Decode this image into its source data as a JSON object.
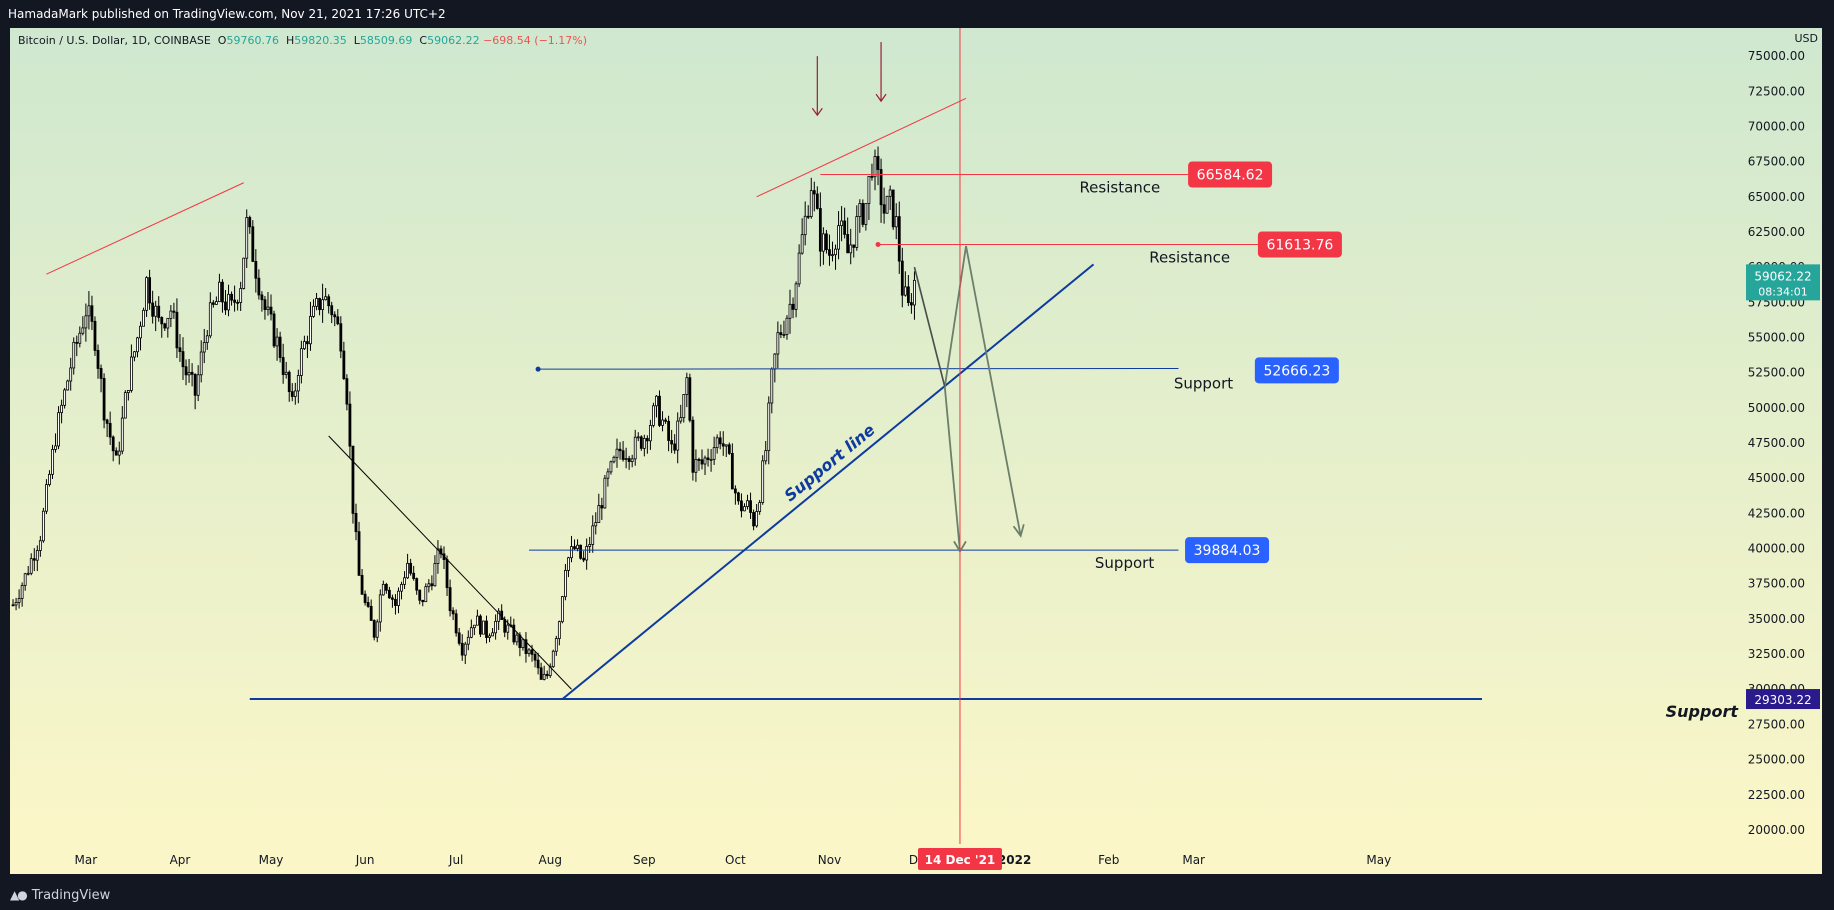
{
  "header": {
    "published": "HamadaMark published on TradingView.com, Nov 21, 2021 17:26 UTC+2"
  },
  "footer": {
    "brand": "TradingView",
    "logo_icon": "tradingview-logo-icon"
  },
  "chart_data": {
    "type": "candlestick",
    "symbol": "Bitcoin / U.S. Dollar, 1D, COINBASE",
    "ohlc_label": {
      "o_key": "O",
      "o": "59760.76",
      "h_key": "H",
      "h": "59820.35",
      "l_key": "L",
      "l": "58509.69",
      "c_key": "C",
      "c": "59062.22",
      "change": "−698.54 (−1.17%)"
    },
    "currency": "USD",
    "y_ticks": [
      "75000.00",
      "72500.00",
      "70000.00",
      "67500.00",
      "65000.00",
      "62500.00",
      "60000.00",
      "57500.00",
      "55000.00",
      "52500.00",
      "50000.00",
      "47500.00",
      "45000.00",
      "42500.00",
      "40000.00",
      "37500.00",
      "35000.00",
      "32500.00",
      "30000.00",
      "27500.00",
      "25000.00",
      "22500.00",
      "20000.00"
    ],
    "y_tick_values": [
      75000,
      72500,
      70000,
      67500,
      65000,
      62500,
      60000,
      57500,
      55000,
      52500,
      50000,
      47500,
      45000,
      42500,
      40000,
      37500,
      35000,
      32500,
      30000,
      27500,
      25000,
      22500,
      20000
    ],
    "ylim": [
      19000,
      77000
    ],
    "x_ticks": [
      "Mar",
      "Apr",
      "May",
      "Jun",
      "Jul",
      "Aug",
      "Sep",
      "Oct",
      "Nov",
      "Dec",
      "2022",
      "Feb",
      "Mar",
      "May"
    ],
    "x_tick_days": [
      60,
      91,
      121,
      152,
      182,
      213,
      244,
      274,
      305,
      335,
      366,
      397,
      425,
      486
    ],
    "xlim": [
      35,
      520
    ],
    "last_price": {
      "value": "59062.22",
      "countdown": "08:34:01",
      "price": 59062.22
    },
    "crosshair": {
      "date_label": "14 Dec '21",
      "day": 348
    },
    "price_path": [
      [
        36,
        36000
      ],
      [
        40,
        38000
      ],
      [
        45,
        41000
      ],
      [
        50,
        48000
      ],
      [
        55,
        53000
      ],
      [
        60,
        57000
      ],
      [
        63,
        55000
      ],
      [
        66,
        50000
      ],
      [
        70,
        46000
      ],
      [
        74,
        52000
      ],
      [
        77,
        55000
      ],
      [
        80,
        59000
      ],
      [
        84,
        56000
      ],
      [
        88,
        57000
      ],
      [
        92,
        53000
      ],
      [
        96,
        51000
      ],
      [
        100,
        56000
      ],
      [
        104,
        58000
      ],
      [
        108,
        57000
      ],
      [
        111,
        59000
      ],
      [
        113,
        63000
      ],
      [
        116,
        60000
      ],
      [
        119,
        57000
      ],
      [
        124,
        54000
      ],
      [
        128,
        50000
      ],
      [
        130,
        53000
      ],
      [
        134,
        56000
      ],
      [
        138,
        58000
      ],
      [
        141,
        57000
      ],
      [
        144,
        55000
      ],
      [
        146,
        51000
      ],
      [
        148,
        43000
      ],
      [
        150,
        38000
      ],
      [
        152,
        36000
      ],
      [
        155,
        34000
      ],
      [
        158,
        38000
      ],
      [
        162,
        36000
      ],
      [
        166,
        39000
      ],
      [
        170,
        36000
      ],
      [
        174,
        38000
      ],
      [
        177,
        40000
      ],
      [
        180,
        36000
      ],
      [
        184,
        33000
      ],
      [
        188,
        35000
      ],
      [
        192,
        34000
      ],
      [
        196,
        35000
      ],
      [
        200,
        34000
      ],
      [
        204,
        33000
      ],
      [
        208,
        32000
      ],
      [
        210,
        30500
      ],
      [
        212,
        31000
      ],
      [
        214,
        33000
      ],
      [
        216,
        35000
      ],
      [
        218,
        39000
      ],
      [
        221,
        40000
      ],
      [
        224,
        39000
      ],
      [
        228,
        42000
      ],
      [
        232,
        45000
      ],
      [
        236,
        47000
      ],
      [
        240,
        47000
      ],
      [
        244,
        48000
      ],
      [
        248,
        50000
      ],
      [
        250,
        49000
      ],
      [
        253,
        47000
      ],
      [
        256,
        49000
      ],
      [
        258,
        52000
      ],
      [
        260,
        46000
      ],
      [
        263,
        46000
      ],
      [
        266,
        47000
      ],
      [
        269,
        48000
      ],
      [
        272,
        46000
      ],
      [
        275,
        43000
      ],
      [
        278,
        43000
      ],
      [
        280,
        42000
      ],
      [
        282,
        44000
      ],
      [
        284,
        47000
      ],
      [
        286,
        52000
      ],
      [
        288,
        55000
      ],
      [
        290,
        56000
      ],
      [
        293,
        58000
      ],
      [
        296,
        62000
      ],
      [
        299,
        66000
      ],
      [
        302,
        62000
      ],
      [
        305,
        61000
      ],
      [
        308,
        63000
      ],
      [
        311,
        61000
      ],
      [
        314,
        63000
      ],
      [
        317,
        64500
      ],
      [
        319,
        67500
      ],
      [
        321,
        66000
      ],
      [
        323,
        64000
      ],
      [
        325,
        64500
      ],
      [
        327,
        63000
      ],
      [
        329,
        58500
      ],
      [
        331,
        57000
      ],
      [
        333,
        59062
      ]
    ],
    "drawings": [
      {
        "kind": "trend",
        "color": "#f23645",
        "from": [
          47,
          59500
        ],
        "to": [
          112,
          66000
        ]
      },
      {
        "kind": "trend",
        "color": "#f23645",
        "from": [
          281,
          65000
        ],
        "to": [
          350,
          72000
        ]
      },
      {
        "kind": "trend",
        "color": "#000000",
        "from": [
          140,
          48000
        ],
        "to": [
          220,
          30000
        ]
      },
      {
        "kind": "trend",
        "color": "#0d3b9e",
        "from": [
          217,
          29300
        ],
        "to": [
          392,
          60200
        ]
      },
      {
        "kind": "hline",
        "color": "#0d3b9e",
        "from": [
          114,
          29303
        ],
        "to": [
          520,
          29303
        ]
      },
      {
        "kind": "hline",
        "color": "#0d3b9e",
        "from": [
          209,
          52750
        ],
        "to": [
          420,
          52800
        ]
      },
      {
        "kind": "hline",
        "color": "#0d3b9e",
        "from": [
          206,
          39884
        ],
        "to": [
          420,
          39884
        ]
      },
      {
        "kind": "hline",
        "color": "#f23645",
        "from": [
          302,
          66584
        ],
        "to": [
          430,
          66584
        ]
      },
      {
        "kind": "hline",
        "color": "#f23645",
        "from": [
          321,
          61614
        ],
        "to": [
          454,
          61614
        ]
      }
    ],
    "arrows_down": [
      [
        301,
        70800
      ],
      [
        322,
        71800
      ]
    ],
    "projection": [
      [
        333,
        60000
      ],
      [
        343,
        51500
      ],
      [
        350,
        61500
      ],
      [
        368,
        40900
      ]
    ],
    "projection2": [
      [
        343,
        51500
      ],
      [
        348,
        39800
      ]
    ],
    "labels": {
      "resistance": "Resistance",
      "support": "Support",
      "support_line": "Support line"
    },
    "annotations": [
      {
        "text_key": "resistance",
        "price": "66584.62",
        "value": 66584.62,
        "color": "#f23645",
        "text_day": 414,
        "tag_day": 437
      },
      {
        "text_key": "resistance",
        "price": "61613.76",
        "value": 61613.76,
        "color": "#f23645",
        "text_day": 437,
        "tag_day": 460
      },
      {
        "text_key": "support",
        "price": "52666.23",
        "value": 52666.23,
        "color": "#2962ff",
        "text_day": 438,
        "tag_day": 459
      },
      {
        "text_key": "support",
        "price": "39884.03",
        "value": 39884.03,
        "color": "#2962ff",
        "text_day": 412,
        "tag_day": 436
      }
    ],
    "support_main": {
      "price": "29303.22",
      "value": 29303.22,
      "color": "#2a1a8c"
    },
    "colors": {
      "bg_top": "#cfe8cf",
      "bg_bottom": "#fbf6c8",
      "candle": "#000000",
      "up": "#ffffff",
      "axis_text": "#131722",
      "crosshair": "#f23645",
      "teal": "#26a69a"
    }
  }
}
